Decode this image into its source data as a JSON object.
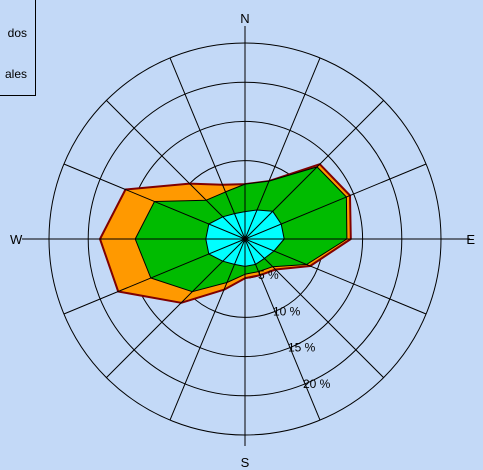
{
  "legend": {
    "items": [
      "dos",
      "ales"
    ]
  },
  "chart_data": {
    "type": "polar-area",
    "title": "",
    "compass": {
      "n": "N",
      "e": "E",
      "s": "S",
      "w": "W"
    },
    "directions": 16,
    "rmax": 25,
    "rings": [
      5,
      10,
      15,
      20,
      25
    ],
    "ring_labels": [
      "5 %",
      "10 %",
      "15 %",
      "20 %"
    ],
    "colors": {
      "outer": "#ff9900",
      "mid": "#00bb00",
      "inner": "#00ffff",
      "edge": "#800000",
      "grid": "#000000",
      "background": "#c3d9f7"
    },
    "series": [
      {
        "values": [
          7.0,
          8.0,
          13.5,
          14.5,
          13.5,
          9.0,
          5.5,
          5.0,
          5.0,
          7.0,
          11.5,
          17.5,
          18.5,
          16.5,
          10.0,
          7.5
        ]
      },
      {
        "values": [
          7.0,
          8.0,
          13.0,
          14.0,
          13.0,
          8.5,
          5.0,
          4.5,
          4.5,
          6.0,
          9.5,
          13.0,
          14.0,
          12.5,
          7.0,
          6.5
        ]
      },
      {
        "values": [
          3.5,
          4.0,
          5.0,
          5.0,
          5.0,
          4.0,
          3.5,
          3.5,
          3.5,
          3.5,
          4.0,
          5.0,
          5.0,
          5.0,
          4.0,
          3.5
        ]
      }
    ]
  }
}
